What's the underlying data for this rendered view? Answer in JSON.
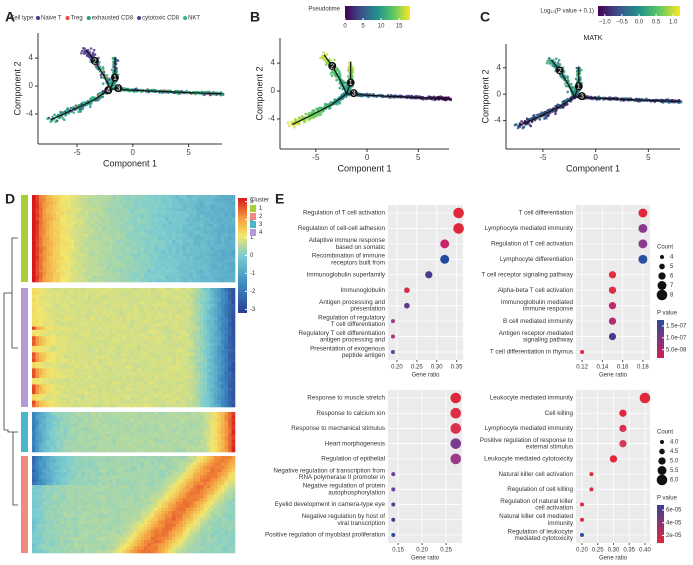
{
  "chart_data": [
    {
      "type": "trajectory",
      "panel": "A",
      "legend_title": "Cell type",
      "series": [
        {
          "name": "Naive T",
          "color": "#3f3c8f"
        },
        {
          "name": "Treg",
          "color": "#e8473b"
        },
        {
          "name": "exhausted CD8",
          "color": "#1f9e89"
        },
        {
          "name": "cytotoxic CD8",
          "color": "#5b3c8c"
        },
        {
          "name": "NKT",
          "color": "#35b779"
        }
      ],
      "xlabel": "Component 1",
      "ylabel": "Component 2",
      "xlim": [
        -8.5,
        8
      ],
      "ylim": [
        -8.3,
        7.6
      ],
      "xticks": [
        -5,
        0,
        5
      ],
      "yticks": [
        -4,
        0,
        4
      ],
      "trajectory": [
        {
          "x": [
            -2,
            -2.6,
            -3.4,
            -4.2
          ],
          "y": [
            -0.4,
            1.5,
            3.6,
            5.2
          ]
        },
        {
          "x": [
            -2,
            -1.6,
            -1.6
          ],
          "y": [
            -0.4,
            1.2,
            4.2
          ]
        },
        {
          "x": [
            -2,
            -3.5,
            -5.5,
            -7.3
          ],
          "y": [
            -0.4,
            -2,
            -3.5,
            -4.8
          ]
        },
        {
          "x": [
            -2,
            0,
            3,
            6,
            8
          ],
          "y": [
            -0.4,
            -0.6,
            -0.8,
            -1,
            -1.1
          ]
        }
      ],
      "branch_points": [
        {
          "label": "1",
          "x": -1.6,
          "y": 1.2
        },
        {
          "label": "2",
          "x": -3.4,
          "y": 3.6
        },
        {
          "label": "3",
          "x": -1.3,
          "y": -0.3
        },
        {
          "label": "4",
          "x": -2.2,
          "y": -0.6
        }
      ]
    },
    {
      "type": "trajectory",
      "panel": "B",
      "colorbar_title": "Pseudotime",
      "colorbar_lim": [
        0,
        18
      ],
      "colorbar_ticks": [
        0,
        5,
        10,
        15
      ],
      "xlabel": "Component 1",
      "ylabel": "Component 2",
      "xlim": [
        -8.5,
        8
      ],
      "ylim": [
        -8.3,
        7.6
      ],
      "xticks": [
        -5,
        0,
        5
      ],
      "yticks": [
        -4,
        0,
        4
      ],
      "trajectory": [
        {
          "x": [
            -2,
            -2.6,
            -3.4,
            -4.2
          ],
          "y": [
            -0.4,
            1.5,
            3.6,
            5.2
          ]
        },
        {
          "x": [
            -2,
            -1.6,
            -1.6
          ],
          "y": [
            -0.4,
            1.2,
            4.2
          ]
        },
        {
          "x": [
            -2,
            -3.5,
            -5.5,
            -7.3
          ],
          "y": [
            -0.4,
            -2,
            -3.5,
            -4.8
          ]
        },
        {
          "x": [
            -2,
            0,
            3,
            6,
            8
          ],
          "y": [
            -0.4,
            -0.6,
            -0.8,
            -1,
            -1.1
          ]
        }
      ],
      "branch_points": [
        {
          "label": "1",
          "x": -1.6,
          "y": 1.2
        },
        {
          "label": "2",
          "x": -3.4,
          "y": 3.6
        },
        {
          "label": "3",
          "x": -1.3,
          "y": -0.3
        }
      ]
    },
    {
      "type": "trajectory",
      "panel": "C",
      "title": "MATK",
      "colorbar_title": "Log₁₀(P value + 0.1)",
      "colorbar_lim": [
        -1.2,
        1.2
      ],
      "colorbar_ticks": [
        {
          "value": -1,
          "label": "−1.0"
        },
        {
          "value": -0.5,
          "label": "−0.5"
        },
        {
          "value": 0,
          "label": "0.0"
        },
        {
          "value": 0.5,
          "label": "0.5"
        },
        {
          "value": 1,
          "label": "1.0"
        }
      ],
      "xlabel": "Component 1",
      "ylabel": "Component 2",
      "xlim": [
        -8.5,
        8
      ],
      "ylim": [
        -8.3,
        7.6
      ],
      "xticks": [
        -5,
        0,
        5
      ],
      "yticks": [
        -4,
        0,
        4
      ],
      "trajectory": [
        {
          "x": [
            -2,
            -2.6,
            -3.4,
            -4.2
          ],
          "y": [
            -0.4,
            1.5,
            3.6,
            5.2
          ]
        },
        {
          "x": [
            -2,
            -1.6,
            -1.6
          ],
          "y": [
            -0.4,
            1.2,
            4.2
          ]
        },
        {
          "x": [
            -2,
            -3.5,
            -5.5,
            -7.3
          ],
          "y": [
            -0.4,
            -2,
            -3.5,
            -4.8
          ]
        },
        {
          "x": [
            -2,
            0,
            3,
            6,
            8
          ],
          "y": [
            -0.4,
            -0.6,
            -0.8,
            -1,
            -1.1
          ]
        }
      ],
      "branch_points": [
        {
          "label": "1",
          "x": -1.6,
          "y": 1.2
        },
        {
          "label": "2",
          "x": -3.4,
          "y": 3.6
        },
        {
          "label": "3",
          "x": -1.3,
          "y": -0.3
        }
      ]
    },
    {
      "type": "heatmap",
      "panel": "D",
      "legend_title": "Cluster",
      "clusters": [
        "1",
        "2",
        "3",
        "4"
      ],
      "cluster_colors": [
        "#a6cf3a",
        "#f08a80",
        "#49b6c9",
        "#b59ad6"
      ],
      "row_clusters": [
        "1",
        "4",
        "3",
        "2"
      ],
      "colorbar_lim": [
        -3.2,
        3.2
      ],
      "colorbar_ticks": [
        3,
        2,
        1,
        0,
        -1,
        -2,
        -3
      ]
    },
    {
      "type": "dotplot",
      "panel": "E",
      "xlabel": "Gene ratio",
      "xlim": [
        0.1775,
        0.366
      ],
      "xticks": [
        {
          "value": 0.2,
          "label": "0.20"
        },
        {
          "value": 0.25,
          "label": "0.25"
        },
        {
          "value": 0.3,
          "label": "0.30"
        },
        {
          "value": 0.35,
          "label": "0.35"
        }
      ],
      "labels": [
        [
          "Regulation of T cell activation"
        ],
        [
          "Regulation of cell-cell adhesion"
        ],
        [
          "Adaptive immune response",
          "based on somatic"
        ],
        [
          "Recombination of immune",
          "receptors built from"
        ],
        [
          "Immunoglobulin superfamily"
        ],
        [
          "Immunoglobulin"
        ],
        [
          "Antigen processing and",
          "presentation"
        ],
        [
          "Regulation of regulatory",
          "T cell differentiation"
        ],
        [
          "Regulatory T cell differentiation",
          "antigen processing and"
        ],
        [
          "Presentation of exogenous",
          "peptide antigen"
        ]
      ],
      "values": [
        0.355,
        0.355,
        0.32,
        0.32,
        0.28,
        0.225,
        0.225,
        0.19,
        0.19,
        0.19
      ],
      "counts": [
        8,
        8,
        7,
        7,
        6,
        5,
        5,
        4,
        4,
        4
      ],
      "colors": [
        "#e0283c",
        "#e0283c",
        "#c8226a",
        "#22499c",
        "#4b3a8e",
        "#d62b4f",
        "#5a3d91",
        "#a23a8c",
        "#b0307e",
        "#6a3e9a"
      ]
    },
    {
      "type": "dotplot",
      "xlabel": "Gene ratio",
      "xlim": [
        0.114,
        0.187
      ],
      "xticks": [
        {
          "value": 0.12,
          "label": "0.12"
        },
        {
          "value": 0.14,
          "label": "0.14"
        },
        {
          "value": 0.16,
          "label": "0.16"
        },
        {
          "value": 0.18,
          "label": "0.18"
        }
      ],
      "labels": [
        [
          "T cell differentiation"
        ],
        [
          "Lymphocyte mediated immunity"
        ],
        [
          "Regulation of T cell activation"
        ],
        [
          "Lymphocyte differentiation"
        ],
        [
          "T cell receptor signaling pathway"
        ],
        [
          "Alpha-beta T cell activation"
        ],
        [
          "Immunoglobulin mediated",
          "immune response"
        ],
        [
          "B cell mediated immunity"
        ],
        [
          "Antigen receptor-mediated",
          "signaling pathway"
        ],
        [
          "T cell differentiation in thymus"
        ]
      ],
      "values": [
        0.18,
        0.18,
        0.18,
        0.18,
        0.15,
        0.15,
        0.15,
        0.15,
        0.15,
        0.12
      ],
      "counts": [
        7,
        7,
        7,
        7,
        6,
        6,
        6,
        6,
        6,
        4
      ],
      "colors": [
        "#e0283c",
        "#8a3a8f",
        "#8a3a8f",
        "#2b4fa0",
        "#e1303f",
        "#dc2d45",
        "#c02a6a",
        "#b62c74",
        "#4b3a8e",
        "#e0283c"
      ],
      "size_legend": {
        "title": "Count",
        "ticks": [
          4,
          5,
          6,
          7,
          8
        ]
      },
      "color_legend": {
        "title": "P value",
        "lim": [
          1.5e-08,
          1.75e-07
        ],
        "colors": [
          "#d0205a",
          "#2c4a9b"
        ],
        "ticks": [
          {
            "value": 1.5e-07,
            "label": "1.5e-07"
          },
          {
            "value": 1e-07,
            "label": "1.0e-07"
          },
          {
            "value": 5e-08,
            "label": "5.0e-08"
          }
        ]
      }
    },
    {
      "type": "dotplot",
      "xlabel": "Gene ratio",
      "xlim": [
        0.129,
        0.283
      ],
      "xticks": [
        {
          "value": 0.15,
          "label": "0.15"
        },
        {
          "value": 0.2,
          "label": "0.20"
        },
        {
          "value": 0.25,
          "label": "0.25"
        }
      ],
      "labels": [
        [
          "Response to muscle stretch"
        ],
        [
          "Response to calcium ion"
        ],
        [
          "Response to mechanical stimulus"
        ],
        [
          "Heart morphogenesis"
        ],
        [
          "Regulation of epithelial"
        ],
        [
          "Negative regulation of transcription from",
          "RNA polymerase II promoter in"
        ],
        [
          "Negative regulation of protein",
          "autophosphorylation"
        ],
        [
          "Eyelid development in camera-type eye"
        ],
        [
          "Negative regulation by host of",
          "viral transcription"
        ],
        [
          "Positive regulation of myoblast proliferation"
        ]
      ],
      "values": [
        0.27,
        0.27,
        0.27,
        0.27,
        0.27,
        0.14,
        0.14,
        0.14,
        0.14,
        0.14
      ],
      "counts": [
        6,
        6,
        6,
        6,
        6,
        4,
        4,
        4,
        4,
        4
      ],
      "colors": [
        "#e0283c",
        "#dc2d45",
        "#d93050",
        "#7a3a8f",
        "#9c3a8a",
        "#6a3e9a",
        "#6a3e9a",
        "#5a3d91",
        "#4b3a8e",
        "#2b4fa0"
      ]
    },
    {
      "type": "dotplot",
      "xlabel": "Gene ratio",
      "xlim": [
        0.181,
        0.416
      ],
      "xticks": [
        {
          "value": 0.2,
          "label": "0.20"
        },
        {
          "value": 0.25,
          "label": "0.25"
        },
        {
          "value": 0.3,
          "label": "0.30"
        },
        {
          "value": 0.35,
          "label": "0.35"
        },
        {
          "value": 0.4,
          "label": "0.40"
        }
      ],
      "labels": [
        [
          "Leukocyte mediated immunity"
        ],
        [
          "Cell killing"
        ],
        [
          "Lymphocyte mediated immunity"
        ],
        [
          "Positive regulation of response to",
          "external stimulus"
        ],
        [
          "Leukocyte mediated cytotoxicity"
        ],
        [
          "Natural killer cell activation"
        ],
        [
          "Regulation of cell killing"
        ],
        [
          "Regulation of natural killer",
          "cell activation"
        ],
        [
          "Natural killer cell mediated",
          "immunity"
        ],
        [
          "Regulation of leukocyte",
          "mediated cytotoxicity"
        ]
      ],
      "values": [
        0.4,
        0.33,
        0.33,
        0.33,
        0.3,
        0.23,
        0.23,
        0.2,
        0.2,
        0.2
      ],
      "counts": [
        6,
        5,
        5,
        5,
        5,
        4,
        4,
        4,
        4,
        4
      ],
      "colors": [
        "#e0283c",
        "#e0283c",
        "#d93050",
        "#d33a5a",
        "#e0283c",
        "#e0283c",
        "#dc2d45",
        "#e0283c",
        "#e0283c",
        "#2b4fa0"
      ],
      "size_legend": {
        "title": "Count",
        "ticks": [
          {
            "value": 4,
            "label": "4.0"
          },
          4.5,
          {
            "value": 5,
            "label": "5.0"
          },
          5.5,
          {
            "value": 6,
            "label": "6.0"
          }
        ]
      },
      "color_legend": {
        "title": "P value",
        "lim": [
          8e-06,
          6.8e-05
        ],
        "colors": [
          "#e0283c",
          "#3a3f9a"
        ],
        "ticks": [
          {
            "value": 6e-05,
            "label": "6e-05"
          },
          {
            "value": 4e-05,
            "label": "4e-05"
          },
          {
            "value": 2e-05,
            "label": "2e-05"
          }
        ]
      }
    }
  ]
}
